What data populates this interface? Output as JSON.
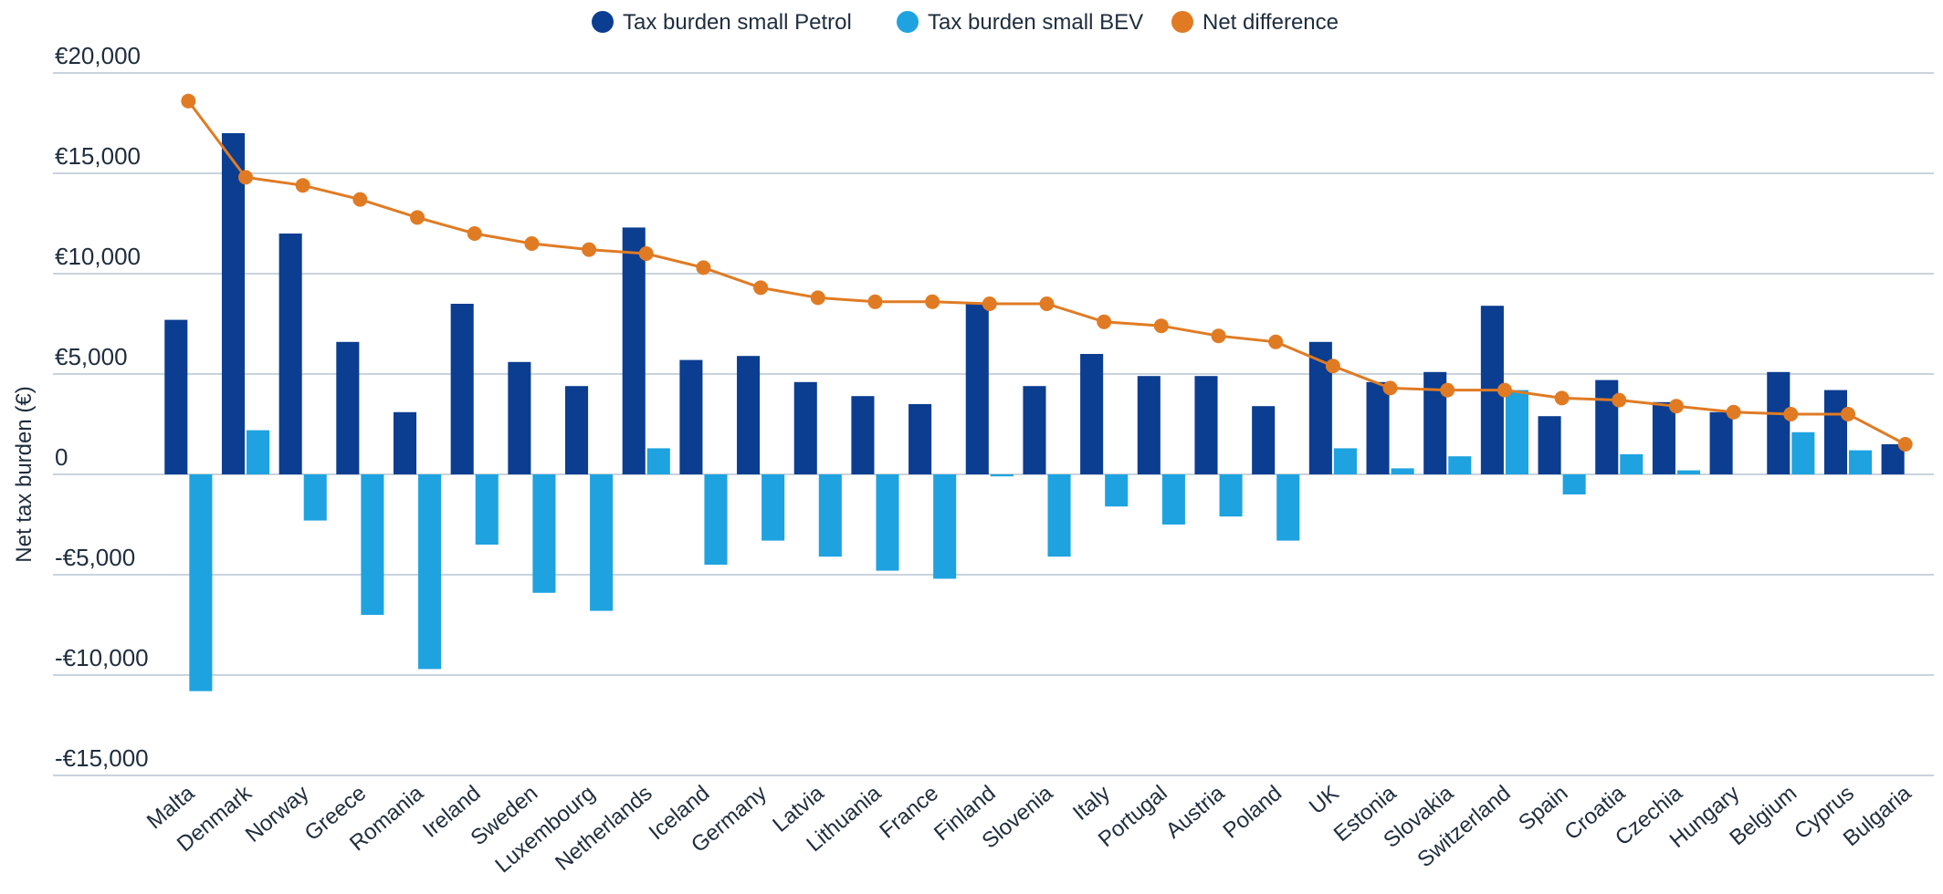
{
  "chart_data": {
    "type": "bar",
    "title": "",
    "xlabel": "",
    "ylabel": "Net tax burden (€)",
    "ylim": [
      -15000,
      20000
    ],
    "yticks": [
      20000,
      15000,
      10000,
      5000,
      0,
      -5000,
      -10000,
      -15000
    ],
    "ytick_labels": [
      "€20,000",
      "€15,000",
      "€10,000",
      "€5,000",
      "0",
      "-€5,000",
      "-€10,000",
      "-€15,000"
    ],
    "grid": true,
    "legend_position": "top-center",
    "categories": [
      "Malta",
      "Denmark",
      "Norway",
      "Greece",
      "Romania",
      "Ireland",
      "Sweden",
      "Luxembourg",
      "Netherlands",
      "Iceland",
      "Germany",
      "Latvia",
      "Lithuania",
      "France",
      "Finland",
      "Slovenia",
      "Italy",
      "Portugal",
      "Austria",
      "Poland",
      "UK",
      "Estonia",
      "Slovakia",
      "Switzerland",
      "Spain",
      "Croatia",
      "Czechia",
      "Hungary",
      "Belgium",
      "Cyprus",
      "Bulgaria"
    ],
    "series": [
      {
        "name": "Tax burden small Petrol",
        "type": "bar",
        "color": "#0b3d91",
        "values": [
          7700,
          17000,
          12000,
          6600,
          3100,
          8500,
          5600,
          4400,
          12300,
          5700,
          5900,
          4600,
          3900,
          3500,
          8500,
          4400,
          6000,
          4900,
          4900,
          3400,
          6600,
          4600,
          5100,
          8400,
          2900,
          4700,
          3600,
          3100,
          5100,
          4200,
          1500
        ]
      },
      {
        "name": "Tax burden small BEV",
        "type": "bar",
        "color": "#1ea3e0",
        "values": [
          -10800,
          2200,
          -2300,
          -7000,
          -9700,
          -3500,
          -5900,
          -6800,
          1300,
          -4500,
          -3300,
          -4100,
          -4800,
          -5200,
          -100,
          -4100,
          -1600,
          -2500,
          -2100,
          -3300,
          1300,
          300,
          900,
          4200,
          -1000,
          1000,
          200,
          0,
          2100,
          1200,
          0
        ]
      },
      {
        "name": "Net difference",
        "type": "line",
        "color": "#e07b24",
        "values": [
          18600,
          14800,
          14400,
          13700,
          12800,
          12000,
          11500,
          11200,
          11000,
          10300,
          9300,
          8800,
          8600,
          8600,
          8500,
          8500,
          7600,
          7400,
          6900,
          6600,
          5400,
          4300,
          4200,
          4200,
          3800,
          3700,
          3400,
          3100,
          3000,
          3000,
          1500
        ]
      }
    ]
  }
}
